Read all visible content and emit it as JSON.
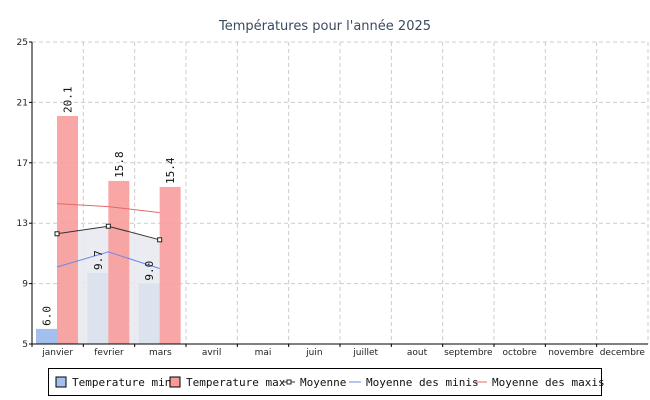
{
  "chart_data": {
    "type": "bar",
    "title": "Températures pour l'année 2025",
    "categories": [
      "janvier",
      "fevrier",
      "mars",
      "avril",
      "mai",
      "juin",
      "juillet",
      "aout",
      "septembre",
      "octobre",
      "novembre",
      "decembre"
    ],
    "ylim": [
      5,
      25
    ],
    "yticks": [
      5,
      9,
      13,
      17,
      21,
      25
    ],
    "grid": true,
    "legend_position": "bottom",
    "series": [
      {
        "name": "Temperature min",
        "kind": "bar",
        "color": "#a3bfed",
        "values": [
          6.0,
          9.7,
          9.0,
          null,
          null,
          null,
          null,
          null,
          null,
          null,
          null,
          null
        ],
        "labels": [
          "6.0",
          "9.7",
          "9.0"
        ]
      },
      {
        "name": "Temperature max",
        "kind": "bar",
        "color": "#f89a9a",
        "values": [
          20.1,
          15.8,
          15.4,
          null,
          null,
          null,
          null,
          null,
          null,
          null,
          null,
          null
        ],
        "labels": [
          "20.1",
          "15.8",
          "15.4"
        ]
      },
      {
        "name": "Moyenne",
        "kind": "line-markers",
        "color": "#333333",
        "fill": "#e6e9ee",
        "values": [
          12.3,
          12.8,
          11.9,
          null,
          null,
          null,
          null,
          null,
          null,
          null,
          null,
          null
        ]
      },
      {
        "name": "Moyenne des minis",
        "kind": "line",
        "color": "#6f89e3",
        "values": [
          10.1,
          11.1,
          10.0,
          null,
          null,
          null,
          null,
          null,
          null,
          null,
          null,
          null
        ]
      },
      {
        "name": "Moyenne des maxis",
        "kind": "line",
        "color": "#e26a6a",
        "values": [
          14.3,
          14.1,
          13.7,
          null,
          null,
          null,
          null,
          null,
          null,
          null,
          null,
          null
        ]
      }
    ]
  }
}
